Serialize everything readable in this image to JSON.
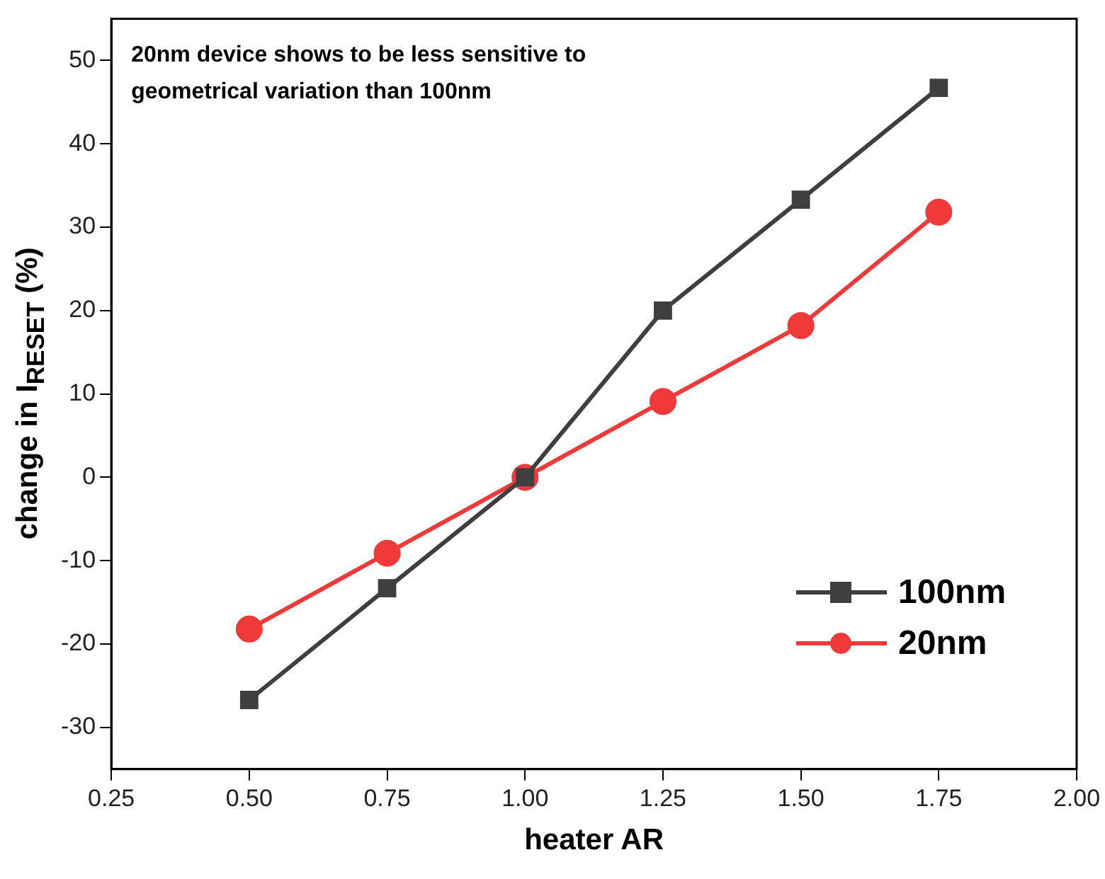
{
  "chart_data": {
    "type": "line",
    "xlabel": "heater AR",
    "ylabel": "change in I$_{RESET}$ (%)",
    "annotations": [
      "20nm device shows to be less sensitive to geometrical variation than 100nm"
    ],
    "x": [
      0.5,
      0.75,
      1.0,
      1.25,
      1.5,
      1.75
    ],
    "series": [
      {
        "name": "100nm",
        "color": "#3f3f3f",
        "marker": "square",
        "values": [
          -26.7,
          -13.3,
          0,
          20,
          33.3,
          46.7
        ]
      },
      {
        "name": "20nm",
        "color": "#f03a3a",
        "marker": "circle",
        "values": [
          -18.2,
          -9.1,
          0,
          9.1,
          18.2,
          31.8
        ]
      }
    ],
    "xlim": [
      0.25,
      2.0
    ],
    "xticks": [
      {
        "value": 0.25,
        "label": "0.25"
      },
      {
        "value": 0.5,
        "label": "0.50"
      },
      {
        "value": 0.75,
        "label": "0.75"
      },
      {
        "value": 1.0,
        "label": "1.00"
      },
      {
        "value": 1.25,
        "label": "1.25"
      },
      {
        "value": 1.5,
        "label": "1.50"
      },
      {
        "value": 1.75,
        "label": "1.75"
      },
      {
        "value": 2.0,
        "label": "2.00"
      }
    ],
    "ylim": [
      -35,
      55
    ],
    "yticks": [
      -30,
      -20,
      -10,
      0,
      10,
      20,
      30,
      40,
      50
    ],
    "grid": false,
    "legend": "bottom right",
    "line_style": "solid"
  }
}
